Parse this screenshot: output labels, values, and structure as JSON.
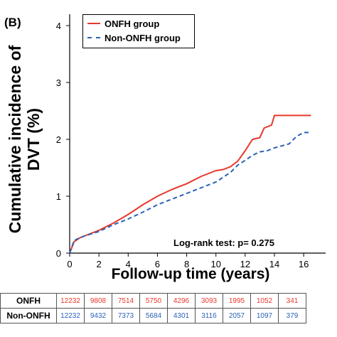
{
  "panel_label": "(B)",
  "chart_data": {
    "type": "line",
    "title": "",
    "xlabel": "Follow-up time (years)",
    "ylabel_lines": [
      "Cumulative incidence of",
      "DVT (%)"
    ],
    "xlim": [
      0,
      17.5
    ],
    "ylim": [
      0,
      4.2
    ],
    "x_ticks": [
      "0",
      "2",
      "4",
      "6",
      "8",
      "10",
      "12",
      "14",
      "16"
    ],
    "y_ticks": [
      "0",
      "1",
      "2",
      "3",
      "4"
    ],
    "legend_position": "top-left",
    "annotation": "Log-rank test: p= 0.275",
    "series": [
      {
        "name": "ONFH group",
        "color": "#e8372a",
        "style": "solid",
        "points": [
          [
            0,
            0
          ],
          [
            0.3,
            0.2
          ],
          [
            0.7,
            0.27
          ],
          [
            1,
            0.3
          ],
          [
            2,
            0.4
          ],
          [
            3,
            0.53
          ],
          [
            4,
            0.68
          ],
          [
            5,
            0.85
          ],
          [
            6,
            1.0
          ],
          [
            7,
            1.12
          ],
          [
            8,
            1.22
          ],
          [
            9,
            1.35
          ],
          [
            9.5,
            1.4
          ],
          [
            10,
            1.45
          ],
          [
            10.5,
            1.47
          ],
          [
            11,
            1.52
          ],
          [
            11.5,
            1.62
          ],
          [
            12,
            1.8
          ],
          [
            12.5,
            2.0
          ],
          [
            13,
            2.03
          ],
          [
            13.3,
            2.2
          ],
          [
            13.8,
            2.25
          ],
          [
            14,
            2.42
          ],
          [
            16.5,
            2.42
          ]
        ]
      },
      {
        "name": "Non-ONFH group",
        "color": "#2a62b8",
        "style": "dashed",
        "points": [
          [
            0,
            0
          ],
          [
            0.3,
            0.22
          ],
          [
            0.7,
            0.27
          ],
          [
            1,
            0.3
          ],
          [
            2,
            0.38
          ],
          [
            3,
            0.5
          ],
          [
            4,
            0.6
          ],
          [
            5,
            0.72
          ],
          [
            6,
            0.85
          ],
          [
            7,
            0.95
          ],
          [
            8,
            1.05
          ],
          [
            9,
            1.15
          ],
          [
            10,
            1.25
          ],
          [
            11,
            1.42
          ],
          [
            11.5,
            1.55
          ],
          [
            12,
            1.63
          ],
          [
            12.5,
            1.72
          ],
          [
            13,
            1.78
          ],
          [
            13.5,
            1.8
          ],
          [
            14,
            1.85
          ],
          [
            15,
            1.92
          ],
          [
            15.5,
            2.05
          ],
          [
            16,
            2.12
          ],
          [
            16.5,
            2.12
          ]
        ]
      }
    ]
  },
  "risk_table": [
    {
      "label": "ONFH",
      "color": "#e8372a",
      "values": [
        "12232",
        "9808",
        "7514",
        "5750",
        "4296",
        "3093",
        "1995",
        "1052",
        "341"
      ]
    },
    {
      "label": "Non-ONFH",
      "color": "#2a62b8",
      "values": [
        "12232",
        "9432",
        "7373",
        "5684",
        "4301",
        "3116",
        "2057",
        "1097",
        "379"
      ]
    }
  ]
}
